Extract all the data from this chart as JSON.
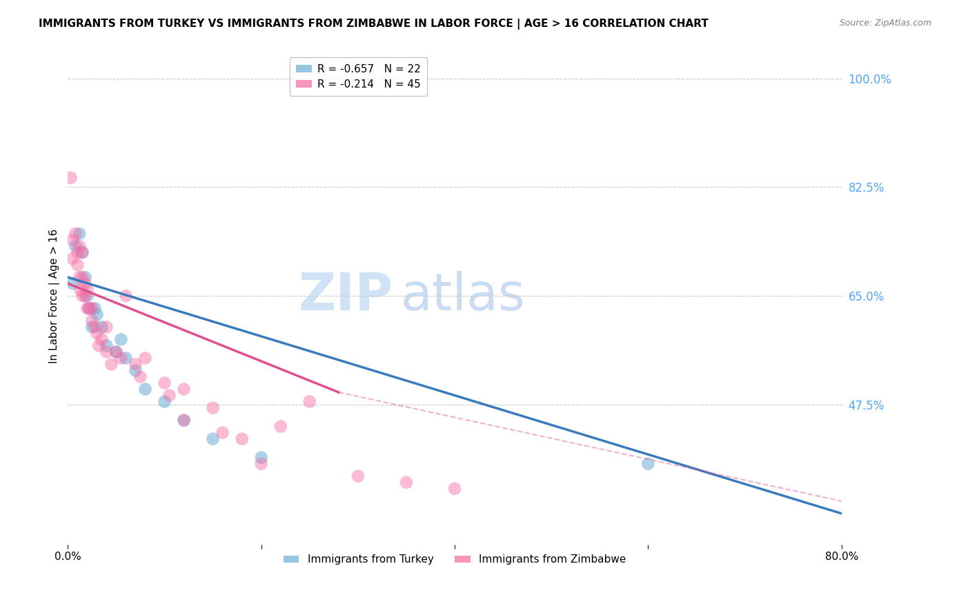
{
  "title": "IMMIGRANTS FROM TURKEY VS IMMIGRANTS FROM ZIMBABWE IN LABOR FORCE | AGE > 16 CORRELATION CHART",
  "source": "Source: ZipAtlas.com",
  "ylabel": "In Labor Force | Age > 16",
  "right_yticks": [
    47.5,
    65.0,
    82.5,
    100.0
  ],
  "right_ytick_labels": [
    "47.5%",
    "65.0%",
    "82.5%",
    "100.0%"
  ],
  "watermark_zip": "ZIP",
  "watermark_atlas": "atlas",
  "legend_turkey": "R = -0.657   N = 22",
  "legend_zimbabwe": "R = -0.214   N = 45",
  "turkey_color": "#6baed6",
  "zimbabwe_color": "#f768a1",
  "right_axis_color": "#4da6ff",
  "turkey_scatter_x": [
    0.5,
    0.8,
    1.2,
    1.5,
    1.8,
    2.0,
    2.2,
    2.5,
    2.8,
    3.0,
    3.5,
    4.0,
    5.0,
    5.5,
    6.0,
    7.0,
    8.0,
    10.0,
    12.0,
    15.0,
    20.0,
    60.0
  ],
  "turkey_scatter_y": [
    67.0,
    73.0,
    75.0,
    72.0,
    68.0,
    65.0,
    63.0,
    60.0,
    63.0,
    62.0,
    60.0,
    57.0,
    56.0,
    58.0,
    55.0,
    53.0,
    50.0,
    48.0,
    45.0,
    42.0,
    39.0,
    38.0
  ],
  "zimbabwe_scatter_x": [
    0.3,
    0.5,
    0.5,
    0.8,
    1.0,
    1.0,
    1.2,
    1.2,
    1.3,
    1.5,
    1.5,
    1.5,
    1.8,
    1.8,
    2.0,
    2.0,
    2.2,
    2.5,
    2.5,
    2.8,
    3.0,
    3.2,
    3.5,
    4.0,
    4.0,
    4.5,
    5.0,
    5.5,
    6.0,
    7.0,
    7.5,
    8.0,
    10.0,
    10.5,
    12.0,
    12.0,
    15.0,
    16.0,
    18.0,
    20.0,
    22.0,
    25.0,
    30.0,
    35.0,
    40.0
  ],
  "zimbabwe_scatter_y": [
    84.0,
    74.0,
    71.0,
    75.0,
    72.0,
    70.0,
    73.0,
    68.0,
    66.0,
    72.0,
    68.0,
    65.0,
    67.0,
    65.0,
    66.0,
    63.0,
    63.0,
    63.0,
    61.0,
    60.0,
    59.0,
    57.0,
    58.0,
    60.0,
    56.0,
    54.0,
    56.0,
    55.0,
    65.0,
    54.0,
    52.0,
    55.0,
    51.0,
    49.0,
    50.0,
    45.0,
    47.0,
    43.0,
    42.0,
    38.0,
    44.0,
    48.0,
    36.0,
    35.0,
    34.0
  ],
  "xmin": 0.0,
  "xmax": 80.0,
  "ymin": 25.0,
  "ymax": 105.0,
  "grid_values": [
    47.5,
    65.0,
    82.5,
    100.0
  ],
  "turkey_line_x": [
    0.0,
    80.0
  ],
  "turkey_line_y_start": 68.0,
  "turkey_line_y_end": 30.0,
  "zimbabwe_line_x_start": 0.0,
  "zimbabwe_line_x_end": 28.0,
  "zimbabwe_line_y_start": 67.0,
  "zimbabwe_line_y_end": 49.5,
  "zimbabwe_dash_x_start": 28.0,
  "zimbabwe_dash_x_end": 80.0,
  "zimbabwe_dash_y_start": 49.5,
  "zimbabwe_dash_y_end": 32.0,
  "bottom_legend_turkey": "Immigrants from Turkey",
  "bottom_legend_zimbabwe": "Immigrants from Zimbabwe"
}
